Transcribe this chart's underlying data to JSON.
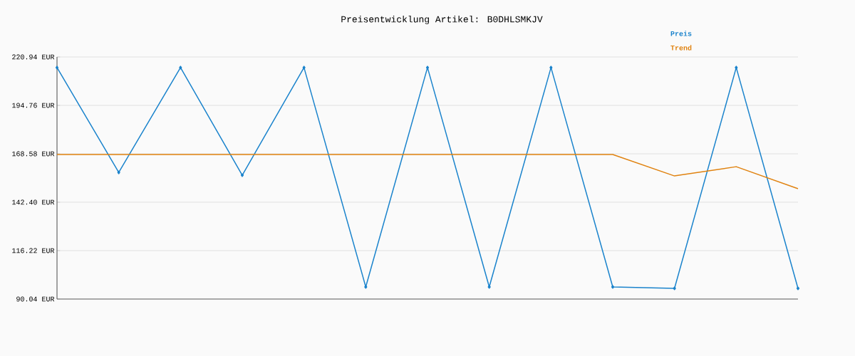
{
  "chart_data": {
    "type": "line",
    "title": "Preisentwicklung Artikel: B0DHLSMKJV",
    "categories": [
      null,
      null,
      null,
      null,
      null,
      null,
      null,
      null,
      null,
      null,
      null,
      null,
      null
    ],
    "series": [
      {
        "name": "Preis",
        "color": "#1a83cc",
        "marker": "diamond",
        "values": [
          215.2,
          158.5,
          215.2,
          157.0,
          215.2,
          96.6,
          215.2,
          96.6,
          215.2,
          96.6,
          95.8,
          215.2,
          95.8
        ]
      },
      {
        "name": "Trend",
        "color": "#e0820f",
        "marker": "none",
        "values": [
          168.2,
          168.2,
          168.2,
          168.2,
          168.2,
          168.2,
          168.2,
          168.2,
          168.2,
          168.2,
          156.6,
          161.6,
          149.7
        ]
      }
    ],
    "ylim": [
      90.04,
      220.94
    ],
    "yticks": [
      {
        "value": 90.04,
        "label": "90.04 EUR"
      },
      {
        "value": 116.22,
        "label": "116.22 EUR"
      },
      {
        "value": 142.4,
        "label": "142.40 EUR"
      },
      {
        "value": 168.58,
        "label": "168.58 EUR"
      },
      {
        "value": 194.76,
        "label": "194.76 EUR"
      },
      {
        "value": 220.94,
        "label": "220.94 EUR"
      }
    ],
    "grid": "y",
    "legend": "top right",
    "tick_labels": "y"
  }
}
